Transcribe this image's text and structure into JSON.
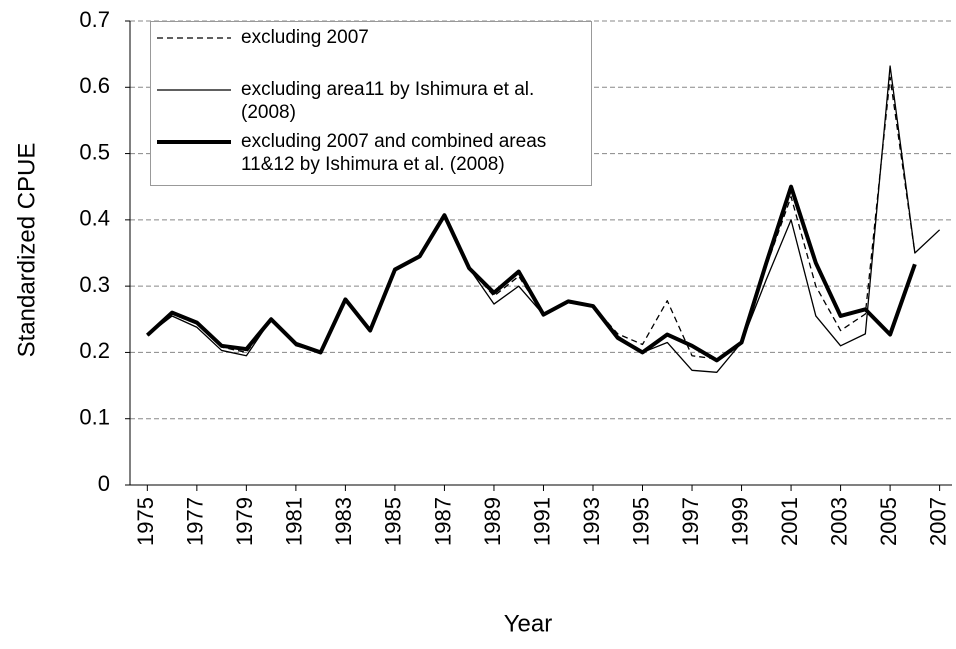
{
  "chart_data": {
    "type": "line",
    "x_label": "Year",
    "y_label": "Standardized CPUE",
    "x": [
      1975,
      1976,
      1977,
      1978,
      1979,
      1980,
      1981,
      1982,
      1983,
      1984,
      1985,
      1986,
      1987,
      1988,
      1989,
      1990,
      1991,
      1992,
      1993,
      1994,
      1995,
      1996,
      1997,
      1998,
      1999,
      2000,
      2001,
      2002,
      2003,
      2004,
      2005,
      2006,
      2007
    ],
    "series": [
      {
        "name": "excluding 2007",
        "color": "#000000",
        "dash": "dashed",
        "width": 1.3,
        "values": [
          0.226,
          0.258,
          0.243,
          0.208,
          0.2,
          0.25,
          0.212,
          0.2,
          0.28,
          0.233,
          0.325,
          0.345,
          0.407,
          0.327,
          0.285,
          0.315,
          0.257,
          0.277,
          0.27,
          0.228,
          0.212,
          0.278,
          0.195,
          0.19,
          0.215,
          0.33,
          0.435,
          0.3,
          0.233,
          0.258,
          0.615,
          0.35,
          null
        ]
      },
      {
        "name": "excluding area11 by Ishimura et al. (2008)",
        "color": "#000000",
        "dash": "solid",
        "width": 1.3,
        "values": [
          0.226,
          0.255,
          0.238,
          0.203,
          0.195,
          0.25,
          0.21,
          0.2,
          0.28,
          0.233,
          0.325,
          0.345,
          0.407,
          0.327,
          0.273,
          0.3,
          0.257,
          0.275,
          0.27,
          0.225,
          0.2,
          0.215,
          0.173,
          0.17,
          0.215,
          0.31,
          0.4,
          0.255,
          0.21,
          0.228,
          0.632,
          0.35,
          0.385
        ]
      },
      {
        "name": "excluding 2007 and combined areas 11&12 by Ishimura et al. (2008)",
        "color": "#000000",
        "dash": "solid",
        "width": 4,
        "values": [
          0.226,
          0.26,
          0.245,
          0.21,
          0.205,
          0.25,
          0.213,
          0.2,
          0.28,
          0.233,
          0.325,
          0.345,
          0.407,
          0.327,
          0.29,
          0.322,
          0.257,
          0.277,
          0.27,
          0.222,
          0.2,
          0.227,
          0.21,
          0.188,
          0.215,
          0.335,
          0.45,
          0.335,
          0.255,
          0.265,
          0.227,
          0.333,
          null
        ]
      }
    ],
    "xlim": [
      1974.3,
      2007.5
    ],
    "xticks": [
      1975,
      1977,
      1979,
      1981,
      1983,
      1985,
      1987,
      1989,
      1991,
      1993,
      1995,
      1997,
      1999,
      2001,
      2003,
      2005,
      2007
    ],
    "ylim": [
      0,
      0.7
    ],
    "yticks": [
      0,
      0.1,
      0.2,
      0.3,
      0.4,
      0.5,
      0.6,
      0.7
    ],
    "grid": true
  }
}
